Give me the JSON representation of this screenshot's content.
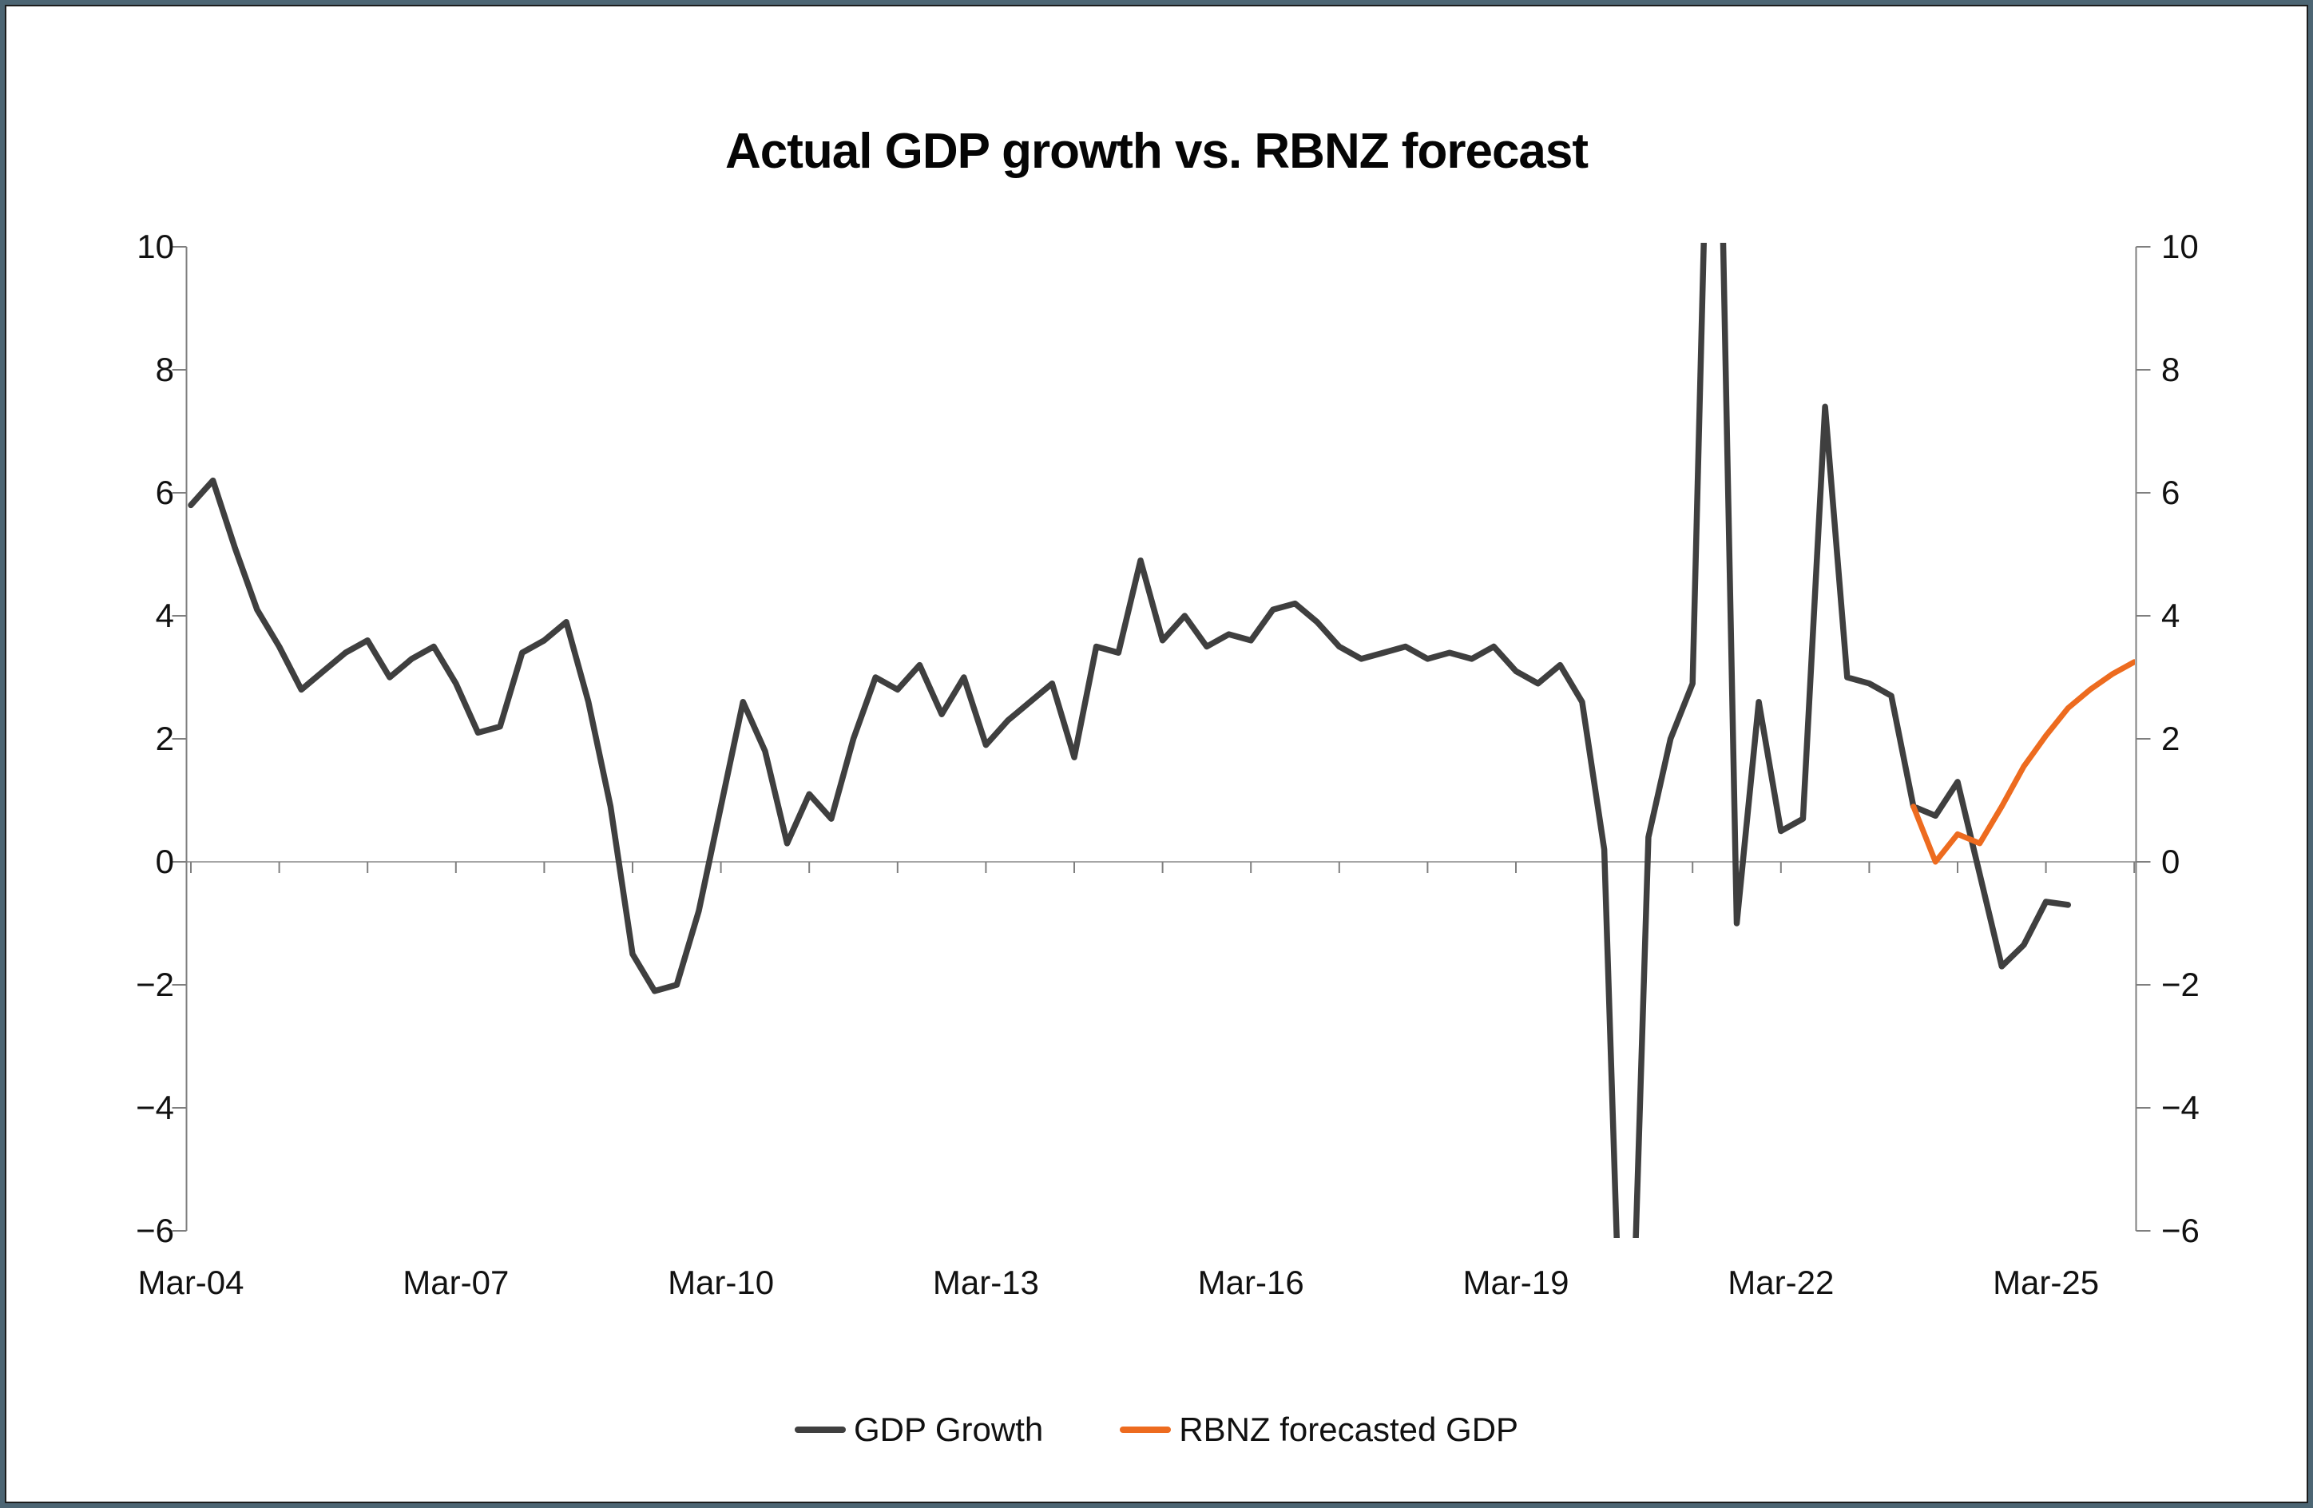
{
  "window": {
    "background": "#FFFFFF",
    "border_color": "#4C6573"
  },
  "chart_data": {
    "type": "line",
    "title": "Actual GDP growth vs. RBNZ forecast",
    "frequency": "quarterly",
    "x_axis": {
      "start": "Mar-2004",
      "end": "Mar-2026",
      "tick_labels": [
        "Mar-04",
        "Mar-07",
        "Mar-10",
        "Mar-13",
        "Mar-16",
        "Mar-19",
        "Mar-22",
        "Mar-25"
      ],
      "label_interval_years": 3,
      "minor_tick_interval_years": 1
    },
    "y_axis": {
      "range": [
        -6,
        10
      ],
      "tick_step": 2,
      "tick_labels": [
        "10",
        "8",
        "6",
        "4",
        "2",
        "0",
        "−2",
        "−4",
        "−6"
      ],
      "tick_values": [
        10,
        8,
        6,
        4,
        2,
        0,
        -2,
        -4,
        -6
      ],
      "sides": "both",
      "zero_line": true,
      "grid": false
    },
    "clip": {
      "above": 10,
      "below": -6
    },
    "series": [
      {
        "name": "GDP Growth",
        "color": "#3F3F3F",
        "start": "Mar-2004",
        "values": [
          5.8,
          6.2,
          5.1,
          4.1,
          3.5,
          2.8,
          3.1,
          3.4,
          3.6,
          3.0,
          3.3,
          3.5,
          2.9,
          2.1,
          2.2,
          3.4,
          3.6,
          3.9,
          2.6,
          0.9,
          -1.5,
          -2.1,
          -2.0,
          -0.8,
          0.9,
          2.6,
          1.8,
          0.3,
          1.1,
          0.7,
          2.0,
          3.0,
          2.8,
          3.2,
          2.4,
          3.0,
          1.9,
          2.3,
          2.6,
          2.9,
          1.7,
          3.5,
          3.4,
          4.9,
          3.6,
          4.0,
          3.5,
          3.7,
          3.6,
          4.1,
          4.2,
          3.9,
          3.5,
          3.3,
          3.4,
          3.5,
          3.3,
          3.4,
          3.3,
          3.5,
          3.1,
          2.9,
          3.2,
          2.6,
          0.2,
          -11.0,
          0.4,
          2.0,
          2.9,
          17.0,
          -1.0,
          2.6,
          0.5,
          0.7,
          7.4,
          3.0,
          2.9,
          2.7,
          0.9,
          0.75,
          1.3,
          -0.2,
          -1.7,
          -1.35,
          -0.65,
          -0.7
        ]
      },
      {
        "name": "RBNZ forecasted GDP",
        "color": "#ED6B1F",
        "start": "Sep-2023",
        "values": [
          0.9,
          0.0,
          0.45,
          0.3,
          0.9,
          1.55,
          2.05,
          2.5,
          2.8,
          3.05,
          3.25
        ]
      }
    ],
    "legend": {
      "position": "bottom",
      "items": [
        "GDP Growth",
        "RBNZ forecasted GDP"
      ]
    }
  }
}
